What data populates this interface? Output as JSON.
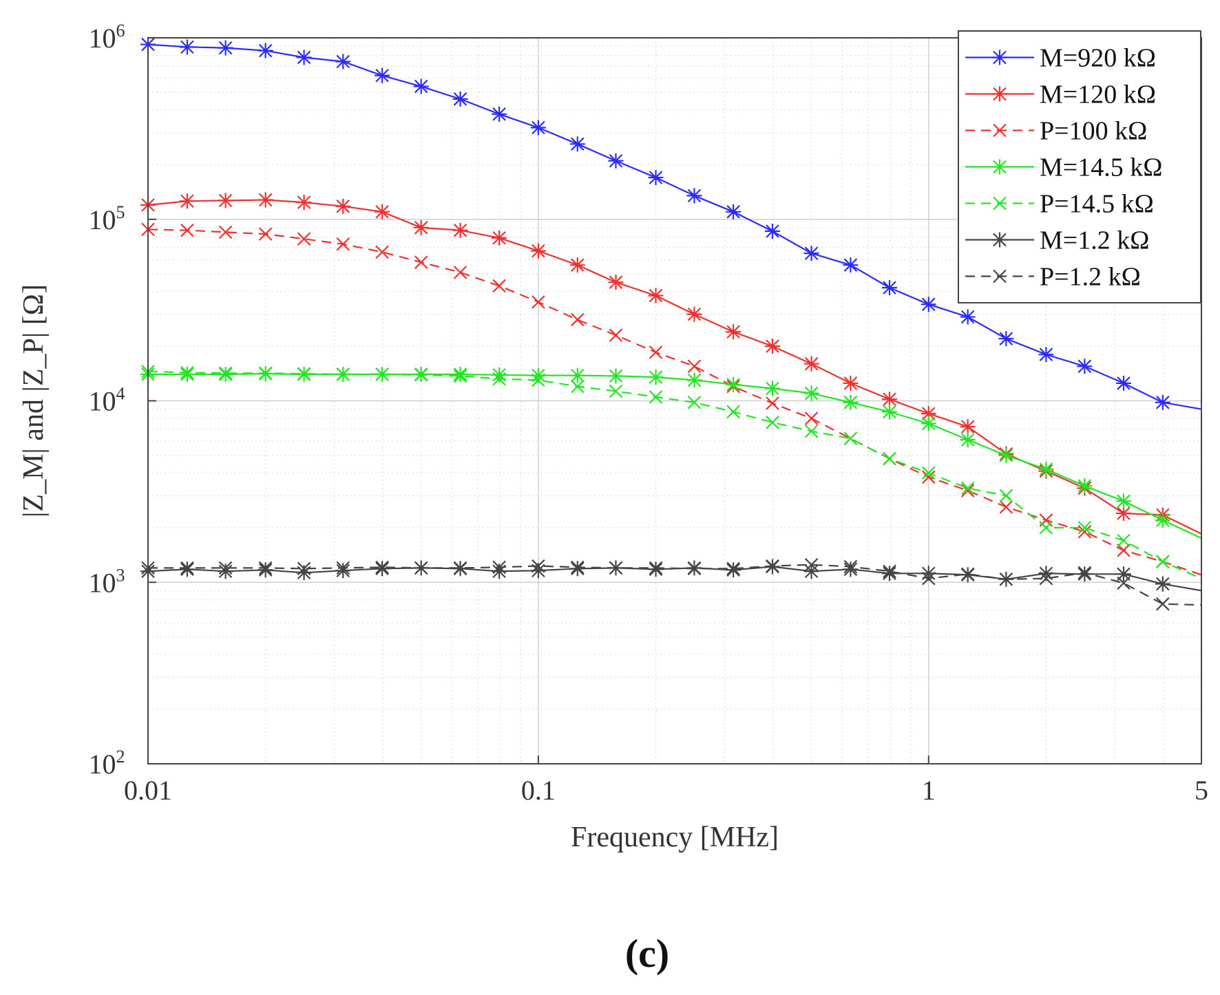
{
  "chart_data": {
    "type": "line",
    "xscale": "log",
    "yscale": "log",
    "xlabel": "Frequency [MHz]",
    "ylabel": "|Z_M| and |Z_P| [Ω]",
    "xlim": [
      0.01,
      5
    ],
    "ylim": [
      100,
      1000000
    ],
    "xticks": [
      {
        "value": 0.01,
        "label": "0.01"
      },
      {
        "value": 0.1,
        "label": "0.1"
      },
      {
        "value": 1,
        "label": "1"
      },
      {
        "value": 5,
        "label": "5"
      }
    ],
    "yticks": [
      {
        "value": 100,
        "base": "10",
        "exp": "2"
      },
      {
        "value": 1000,
        "base": "10",
        "exp": "3"
      },
      {
        "value": 10000,
        "base": "10",
        "exp": "4"
      },
      {
        "value": 100000,
        "base": "10",
        "exp": "5"
      },
      {
        "value": 1000000,
        "base": "10",
        "exp": "6"
      }
    ],
    "grid": true,
    "legend_position": "top-right",
    "panel_label": "(c)",
    "x": [
      0.01,
      0.0126,
      0.0158,
      0.02,
      0.0251,
      0.0316,
      0.0398,
      0.0501,
      0.0631,
      0.0794,
      0.1,
      0.126,
      0.158,
      0.2,
      0.251,
      0.316,
      0.398,
      0.501,
      0.631,
      0.794,
      1.0,
      1.26,
      1.58,
      2.0,
      2.51,
      3.16,
      3.98,
      5.0
    ],
    "series": [
      {
        "name": "M=920 kΩ",
        "color": "#2b2bff",
        "dash": false,
        "marker": "asterisk",
        "values": [
          920000,
          890000,
          880000,
          850000,
          780000,
          740000,
          620000,
          540000,
          460000,
          380000,
          320000,
          260000,
          210000,
          170000,
          135000,
          110000,
          86000,
          65000,
          56000,
          42000,
          34000,
          29000,
          22000,
          18000,
          15500,
          12500,
          9800,
          9000
        ]
      },
      {
        "name": "M=120 kΩ",
        "color": "#f03030",
        "dash": false,
        "marker": "asterisk",
        "values": [
          120000,
          126000,
          127000,
          128000,
          124000,
          118000,
          110000,
          90000,
          87000,
          79000,
          67000,
          56000,
          45000,
          38000,
          30000,
          24000,
          20000,
          16000,
          12500,
          10200,
          8500,
          7200,
          5100,
          4100,
          3300,
          2400,
          2350,
          1850
        ]
      },
      {
        "name": "P=100 kΩ",
        "color": "#f03030",
        "dash": true,
        "marker": "cross",
        "values": [
          88000,
          87000,
          85000,
          83000,
          78000,
          73000,
          66000,
          58000,
          51000,
          43000,
          35000,
          28000,
          23000,
          18500,
          15500,
          12000,
          9700,
          8000,
          6200,
          4800,
          3800,
          3200,
          2600,
          2200,
          1900,
          1500,
          1300,
          1100
        ]
      },
      {
        "name": "M=14.5 kΩ",
        "color": "#22e622",
        "dash": false,
        "marker": "asterisk",
        "values": [
          14000,
          14000,
          14000,
          14100,
          14000,
          14000,
          14000,
          14000,
          14000,
          13900,
          13800,
          13800,
          13700,
          13500,
          13000,
          12300,
          11700,
          11000,
          9800,
          8700,
          7500,
          6100,
          5000,
          4200,
          3400,
          2800,
          2200,
          1750
        ]
      },
      {
        "name": "P=14.5 kΩ",
        "color": "#22e622",
        "dash": true,
        "marker": "cross",
        "values": [
          14500,
          14300,
          14200,
          14200,
          14100,
          14000,
          14000,
          13900,
          13700,
          13200,
          13000,
          12000,
          11300,
          10500,
          9800,
          8700,
          7600,
          6800,
          6200,
          4800,
          4000,
          3300,
          3000,
          2000,
          2000,
          1700,
          1300,
          1050
        ]
      },
      {
        "name": "M=1.2 kΩ",
        "color": "#444444",
        "dash": false,
        "marker": "asterisk",
        "values": [
          1150,
          1180,
          1150,
          1170,
          1130,
          1160,
          1190,
          1200,
          1190,
          1150,
          1160,
          1190,
          1200,
          1180,
          1200,
          1170,
          1220,
          1150,
          1180,
          1120,
          1120,
          1100,
          1040,
          1120,
          1110,
          1110,
          980,
          900
        ]
      },
      {
        "name": "P=1.2 kΩ",
        "color": "#444444",
        "dash": true,
        "marker": "cross",
        "values": [
          1200,
          1200,
          1200,
          1200,
          1190,
          1200,
          1210,
          1200,
          1200,
          1210,
          1230,
          1210,
          1200,
          1200,
          1190,
          1190,
          1230,
          1250,
          1220,
          1150,
          1050,
          1110,
          1040,
          1050,
          1130,
          990,
          760,
          750
        ]
      }
    ]
  }
}
